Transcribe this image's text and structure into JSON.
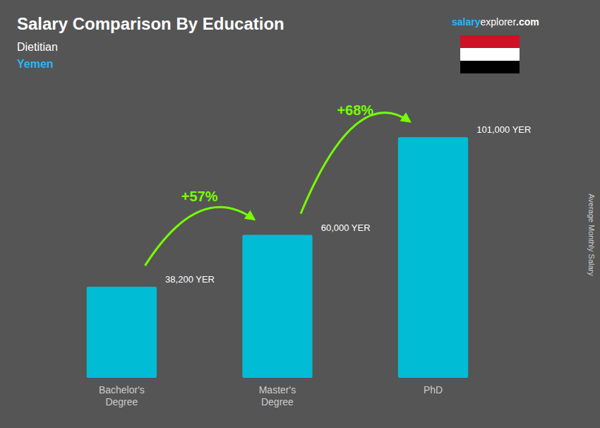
{
  "chart_data": {
    "type": "bar",
    "title": "Salary Comparison By Education",
    "subtitle": "Dietitian",
    "location": "Yemen",
    "watermark": [
      "salary",
      "explorer",
      ".com"
    ],
    "y_label": "Average Monthly Salary",
    "categories": [
      "Bachelor's\nDegree",
      "Master's\nDegree",
      "PhD"
    ],
    "values": [
      38200,
      60000,
      101000
    ],
    "value_labels": [
      "38,200 YER",
      "60,000 YER",
      "101,000 YER"
    ],
    "color": "#00bcd4",
    "ylim": [
      0,
      120000
    ],
    "annotations": [
      "+57%",
      "+68%"
    ],
    "data_labels": true,
    "tick_labels": "x",
    "grid": false
  }
}
